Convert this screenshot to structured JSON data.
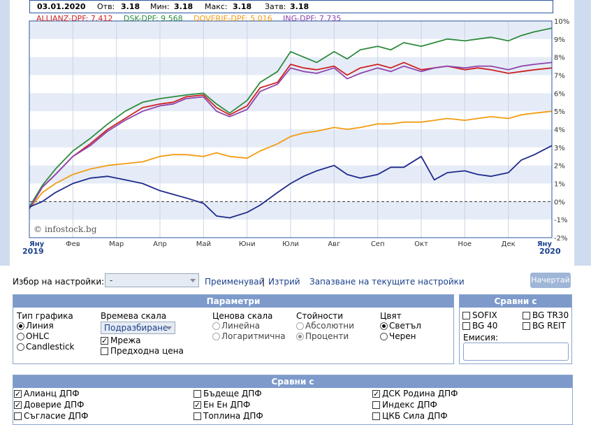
{
  "quote": {
    "date": "03.01.2020",
    "open_label": "Отв:",
    "open_value": "3.18",
    "min_label": "Мин:",
    "min_value": "3.18",
    "max_label": "Макс:",
    "max_value": "3.18",
    "close_label": "Затв:",
    "close_value": "3.18"
  },
  "legend": [
    {
      "text": "ALLIANZ-DPF: 7.412",
      "color": "#cc2222"
    },
    {
      "text": "DSK-DPF: 9.568",
      "color": "#2e8b3e"
    },
    {
      "text": "DOVERIE-DPF: 5.016",
      "color": "#f39c12"
    },
    {
      "text": "ING-DPF: 7.735",
      "color": "#8e44ad"
    }
  ],
  "watermark": "© infostock.bg",
  "chart_data": {
    "type": "line",
    "x_tick_labels": [
      "Яну",
      "Фев",
      "Мар",
      "Апр",
      "Май",
      "Юни",
      "Юли",
      "Авг",
      "Сеп",
      "Окт",
      "Ное",
      "Дек",
      "Яну"
    ],
    "x_year_labels": {
      "start": "2019",
      "end": "2020"
    },
    "y_tick_labels": [
      "10%",
      "9%",
      "8%",
      "7%",
      "6%",
      "5%",
      "4%",
      "3%",
      "2%",
      "1%",
      "0%",
      "-1%",
      "-2%"
    ],
    "ylim": [
      -2,
      10
    ],
    "grid": true,
    "reference_line": 0,
    "series": [
      {
        "name": "ALLIANZ-DPF",
        "color": "#cc2222",
        "points": [
          [
            0,
            -0.4
          ],
          [
            0.3,
            0.8
          ],
          [
            0.6,
            1.5
          ],
          [
            1,
            2.5
          ],
          [
            1.4,
            3.2
          ],
          [
            1.8,
            4.0
          ],
          [
            2.2,
            4.6
          ],
          [
            2.6,
            5.2
          ],
          [
            3,
            5.4
          ],
          [
            3.3,
            5.5
          ],
          [
            3.6,
            5.8
          ],
          [
            4,
            5.9
          ],
          [
            4.3,
            5.2
          ],
          [
            4.6,
            4.8
          ],
          [
            5,
            5.3
          ],
          [
            5.3,
            6.3
          ],
          [
            5.7,
            6.6
          ],
          [
            6,
            7.6
          ],
          [
            6.3,
            7.4
          ],
          [
            6.6,
            7.3
          ],
          [
            7,
            7.5
          ],
          [
            7.3,
            7.0
          ],
          [
            7.6,
            7.4
          ],
          [
            8,
            7.6
          ],
          [
            8.3,
            7.4
          ],
          [
            8.6,
            7.7
          ],
          [
            9,
            7.3
          ],
          [
            9.3,
            7.4
          ],
          [
            9.6,
            7.5
          ],
          [
            10,
            7.3
          ],
          [
            10.3,
            7.4
          ],
          [
            10.6,
            7.3
          ],
          [
            11,
            7.1
          ],
          [
            11.3,
            7.2
          ],
          [
            11.6,
            7.3
          ],
          [
            12,
            7.4
          ]
        ]
      },
      {
        "name": "DSK-DPF",
        "color": "#2e8b3e",
        "points": [
          [
            0,
            -0.3
          ],
          [
            0.3,
            0.9
          ],
          [
            0.6,
            1.8
          ],
          [
            1,
            2.8
          ],
          [
            1.4,
            3.5
          ],
          [
            1.8,
            4.3
          ],
          [
            2.2,
            5.0
          ],
          [
            2.6,
            5.5
          ],
          [
            3,
            5.7
          ],
          [
            3.3,
            5.8
          ],
          [
            3.6,
            5.9
          ],
          [
            4,
            6.0
          ],
          [
            4.3,
            5.4
          ],
          [
            4.6,
            4.9
          ],
          [
            5,
            5.6
          ],
          [
            5.3,
            6.6
          ],
          [
            5.7,
            7.2
          ],
          [
            6,
            8.3
          ],
          [
            6.3,
            8.0
          ],
          [
            6.6,
            7.7
          ],
          [
            7,
            8.3
          ],
          [
            7.3,
            7.9
          ],
          [
            7.6,
            8.4
          ],
          [
            8,
            8.6
          ],
          [
            8.3,
            8.4
          ],
          [
            8.6,
            8.8
          ],
          [
            9,
            8.6
          ],
          [
            9.3,
            8.8
          ],
          [
            9.6,
            9.0
          ],
          [
            10,
            8.9
          ],
          [
            10.3,
            9.0
          ],
          [
            10.6,
            9.1
          ],
          [
            11,
            8.9
          ],
          [
            11.3,
            9.2
          ],
          [
            11.6,
            9.4
          ],
          [
            12,
            9.6
          ]
        ]
      },
      {
        "name": "DOVERIE-DPF",
        "color": "#f39c12",
        "points": [
          [
            0,
            -0.4
          ],
          [
            0.3,
            0.5
          ],
          [
            0.6,
            1.0
          ],
          [
            1,
            1.5
          ],
          [
            1.4,
            1.8
          ],
          [
            1.8,
            2.0
          ],
          [
            2.2,
            2.1
          ],
          [
            2.6,
            2.2
          ],
          [
            3,
            2.5
          ],
          [
            3.3,
            2.6
          ],
          [
            3.6,
            2.6
          ],
          [
            4,
            2.5
          ],
          [
            4.3,
            2.7
          ],
          [
            4.6,
            2.5
          ],
          [
            5,
            2.4
          ],
          [
            5.3,
            2.8
          ],
          [
            5.7,
            3.2
          ],
          [
            6,
            3.6
          ],
          [
            6.3,
            3.8
          ],
          [
            6.6,
            3.9
          ],
          [
            7,
            4.1
          ],
          [
            7.3,
            4.0
          ],
          [
            7.6,
            4.1
          ],
          [
            8,
            4.3
          ],
          [
            8.3,
            4.3
          ],
          [
            8.6,
            4.4
          ],
          [
            9,
            4.4
          ],
          [
            9.3,
            4.5
          ],
          [
            9.6,
            4.6
          ],
          [
            10,
            4.5
          ],
          [
            10.3,
            4.6
          ],
          [
            10.6,
            4.7
          ],
          [
            11,
            4.6
          ],
          [
            11.3,
            4.8
          ],
          [
            11.6,
            4.9
          ],
          [
            12,
            5.0
          ]
        ]
      },
      {
        "name": "ING-DPF",
        "color": "#8e44ad",
        "points": [
          [
            0,
            -0.4
          ],
          [
            0.3,
            0.8
          ],
          [
            0.6,
            1.5
          ],
          [
            1,
            2.5
          ],
          [
            1.4,
            3.1
          ],
          [
            1.8,
            3.9
          ],
          [
            2.2,
            4.5
          ],
          [
            2.6,
            5.0
          ],
          [
            3,
            5.3
          ],
          [
            3.3,
            5.4
          ],
          [
            3.6,
            5.7
          ],
          [
            4,
            5.8
          ],
          [
            4.3,
            5.0
          ],
          [
            4.6,
            4.7
          ],
          [
            5,
            5.1
          ],
          [
            5.3,
            6.1
          ],
          [
            5.7,
            6.5
          ],
          [
            6,
            7.4
          ],
          [
            6.3,
            7.2
          ],
          [
            6.6,
            7.1
          ],
          [
            7,
            7.4
          ],
          [
            7.3,
            6.8
          ],
          [
            7.6,
            7.1
          ],
          [
            8,
            7.4
          ],
          [
            8.3,
            7.2
          ],
          [
            8.6,
            7.5
          ],
          [
            9,
            7.2
          ],
          [
            9.3,
            7.4
          ],
          [
            9.6,
            7.5
          ],
          [
            10,
            7.4
          ],
          [
            10.3,
            7.5
          ],
          [
            10.6,
            7.5
          ],
          [
            11,
            7.3
          ],
          [
            11.3,
            7.5
          ],
          [
            11.6,
            7.6
          ],
          [
            12,
            7.7
          ]
        ]
      },
      {
        "color": "#1f2a8a",
        "points": [
          [
            0,
            -0.3
          ],
          [
            0.3,
            0.0
          ],
          [
            0.6,
            0.5
          ],
          [
            1,
            1.0
          ],
          [
            1.4,
            1.3
          ],
          [
            1.8,
            1.4
          ],
          [
            2.2,
            1.2
          ],
          [
            2.6,
            1.0
          ],
          [
            3,
            0.6
          ],
          [
            3.3,
            0.4
          ],
          [
            3.6,
            0.2
          ],
          [
            4,
            -0.1
          ],
          [
            4.3,
            -0.8
          ],
          [
            4.6,
            -0.9
          ],
          [
            5,
            -0.6
          ],
          [
            5.3,
            -0.2
          ],
          [
            5.7,
            0.5
          ],
          [
            6,
            1.0
          ],
          [
            6.3,
            1.4
          ],
          [
            6.6,
            1.7
          ],
          [
            7,
            2.0
          ],
          [
            7.3,
            1.5
          ],
          [
            7.6,
            1.3
          ],
          [
            8,
            1.5
          ],
          [
            8.3,
            1.9
          ],
          [
            8.6,
            1.9
          ],
          [
            9,
            2.5
          ],
          [
            9.3,
            1.2
          ],
          [
            9.6,
            1.6
          ],
          [
            10,
            1.7
          ],
          [
            10.3,
            1.5
          ],
          [
            10.6,
            1.4
          ],
          [
            11,
            1.6
          ],
          [
            11.3,
            2.3
          ],
          [
            11.6,
            2.6
          ],
          [
            12,
            3.1
          ]
        ]
      }
    ]
  },
  "settings": {
    "preset_label": "Избор на настройки:",
    "preset_value": "-",
    "rename_link": "Преименувай",
    "separator": "|",
    "delete_link": "Изтрий",
    "save_link": "Запазване на текущите настройки",
    "draw_button": "Начертай"
  },
  "params": {
    "title": "Параметри",
    "chart_type": {
      "title": "Тип графика",
      "options": [
        "Линия",
        "OHLC",
        "Candlestick"
      ],
      "selected": 0
    },
    "time_scale": {
      "title": "Времева скала",
      "select_value": "Подразбиране",
      "grid_label": "Мрежа",
      "grid_checked": true,
      "prev_price_label": "Предходна цена",
      "prev_price_checked": false
    },
    "price_scale": {
      "title": "Ценова скала",
      "options": [
        "Линейна",
        "Логаритмична"
      ]
    },
    "values": {
      "title": "Стойности",
      "options": [
        "Абсолютни",
        "Проценти"
      ],
      "selected": 1
    },
    "color": {
      "title": "Цвят",
      "options": [
        "Светъл",
        "Черен"
      ],
      "selected": 0
    }
  },
  "compare_indices": {
    "title": "Сравни с",
    "items": [
      {
        "label": "SOFIX",
        "checked": false
      },
      {
        "label": "BG TR30",
        "checked": false
      },
      {
        "label": "BG 40",
        "checked": false
      },
      {
        "label": "BG REIT",
        "checked": false
      }
    ],
    "emission_label": "Емисия:"
  },
  "compare_funds": {
    "title": "Сравни с",
    "items": [
      {
        "label": "Алианц ДПФ",
        "checked": true
      },
      {
        "label": "Бъдеще ДПФ",
        "checked": false
      },
      {
        "label": "ДСК Родина ДПФ",
        "checked": true
      },
      {
        "label": "Доверие ДПФ",
        "checked": true
      },
      {
        "label": "Ен Ен ДПФ",
        "checked": true
      },
      {
        "label": "Индекс ДПФ",
        "checked": false
      },
      {
        "label": "Съгласие ДПФ",
        "checked": false
      },
      {
        "label": "Топлина ДПФ",
        "checked": false
      },
      {
        "label": "ЦКБ Сила ДПФ",
        "checked": false
      }
    ]
  }
}
